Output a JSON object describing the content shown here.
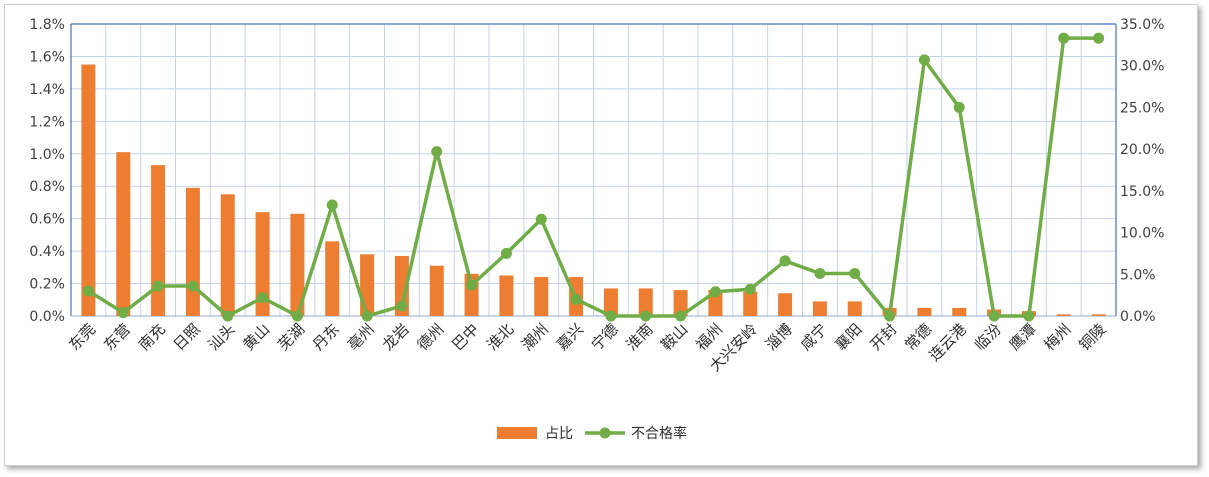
{
  "chart_data": {
    "type": "bar+line",
    "title": "",
    "categories": [
      "东莞",
      "东营",
      "南充",
      "日照",
      "汕头",
      "黄山",
      "芜湖",
      "丹东",
      "亳州",
      "龙岩",
      "德州",
      "巴中",
      "淮北",
      "潮州",
      "嘉兴",
      "宁德",
      "淮南",
      "鞍山",
      "福州",
      "大兴安岭",
      "淄博",
      "咸宁",
      "襄阳",
      "开封",
      "常德",
      "连云港",
      "临汾",
      "鹰潭",
      "梅州",
      "铜陵"
    ],
    "series": [
      {
        "name": "占比",
        "type": "bar",
        "axis": "left",
        "color": "#ED7D31",
        "values": [
          1.55,
          1.01,
          0.93,
          0.79,
          0.75,
          0.64,
          0.63,
          0.46,
          0.38,
          0.37,
          0.31,
          0.26,
          0.25,
          0.24,
          0.24,
          0.17,
          0.17,
          0.16,
          0.16,
          0.15,
          0.14,
          0.09,
          0.09,
          0.05,
          0.05,
          0.05,
          0.04,
          0.03,
          0.01,
          0.01
        ]
      },
      {
        "name": "不合格率",
        "type": "line",
        "axis": "right",
        "color": "#70AD47",
        "values": [
          3.0,
          0.4,
          3.6,
          3.6,
          0.0,
          2.2,
          0.0,
          13.3,
          0.0,
          1.2,
          19.7,
          3.7,
          7.5,
          11.6,
          2.0,
          0.0,
          0.0,
          0.0,
          2.9,
          3.2,
          6.6,
          5.1,
          5.1,
          0.0,
          30.7,
          25.0,
          0.0,
          0.0,
          33.3,
          33.3
        ]
      }
    ],
    "y_left": {
      "ylim": [
        0,
        1.8
      ],
      "ticks": [
        "0.0%",
        "0.2%",
        "0.4%",
        "0.6%",
        "0.8%",
        "1.0%",
        "1.2%",
        "1.4%",
        "1.6%",
        "1.8%"
      ]
    },
    "y_right": {
      "ylim": [
        0,
        35
      ],
      "ticks": [
        "0.0%",
        "5.0%",
        "10.0%",
        "15.0%",
        "20.0%",
        "25.0%",
        "30.0%",
        "35.0%"
      ]
    },
    "grid": true,
    "legend_position": "bottom"
  },
  "legend": {
    "bar_label": "占比",
    "line_label": "不合格率"
  }
}
